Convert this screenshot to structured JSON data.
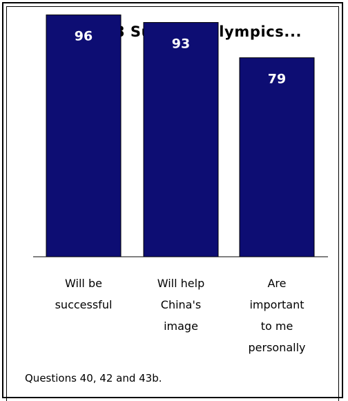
{
  "chart_data": {
    "type": "bar",
    "title": "The 2008 Summer Olympics...",
    "categories": [
      [
        "Will be",
        "successful"
      ],
      [
        "Will help",
        "China's",
        "image"
      ],
      [
        "Are",
        "important",
        "to me",
        "personally"
      ]
    ],
    "values": [
      96,
      93,
      79
    ],
    "value_labels": [
      "96",
      "93",
      "79"
    ],
    "ylim": [
      0,
      100
    ],
    "xlabel": "",
    "ylabel": "",
    "grid": false,
    "legend": "none",
    "bar_color": "#0d0d73"
  },
  "footnote": "Questions 40, 42 and 43b."
}
